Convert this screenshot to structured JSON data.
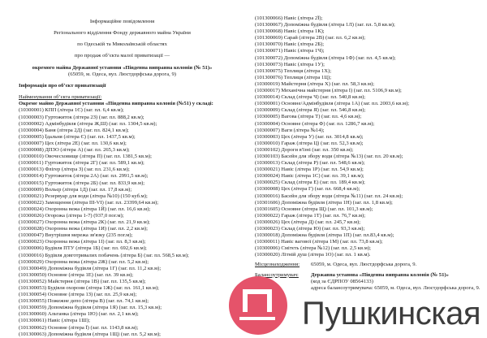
{
  "header": {
    "line1": "Інформаційне повідомлення",
    "line2": "Регіонального відділення Фонду державного майна України",
    "line3": "по Одеській та Миколаївській областях",
    "line4": "про продаж об’єкта малої приватизації —",
    "line5": "окремого майна Державної установи «Південна виправна колонія (№ 51)»",
    "line6": "(65059, м. Одеса, вул. Люстдорфська дорога, 9)"
  },
  "section_title": "Інформація про об’єкт приватизації",
  "name_label": "Найменування об’єкта приватизації:",
  "object_title": "Окреме майно Державної установи «Південна виправна колонія (№51) у складі:",
  "left_items": [
    "(10300001) КПП (літера 1Є) (заг. пл. 6,4 кв.м);",
    "(10300003) Гуртожиток (літера 2З) (заг. пл. 888,2 кв.м);",
    "(10300002) Адмінбудівля (літера Ж,Ш) (заг. пл. 1304,5 кв.м);",
    "(10300004) Баня (літера 2Д) (заг. пл. 824,1 кв.м);",
    "(10300005) Їдальня (літера Є) (заг. пл. 1437,5 кв.м);",
    "(10300007) Цех (літера 2Е) (заг. пл. 130,6 кв.м);",
    "(10300008) ДПЗО (літера А) (заг. пл. 265,3 кв.м);",
    "(10300010) Овочесховище (літера П) (заг. пл. 1381,5 кв.м);",
    "(10300011) Гуртожиток (літера 2Г) (заг. пл. 589,1 кв.м);",
    "(10300013) Флігер (літера З) (заг. пл. 231,6 кв.м);",
    "(10300014) Гуртожиток (літера 2А) (заг. пл. 2991,5 кв.м);",
    "(10300015) Гуртожиток (літера 2Б) (заг. пл. 833,9 кв.м);",
    "(10300009) Вольєр (літера 1Д) (заг. пл. 17,8 кв.м);",
    "(10300021) Резервуар для води (літера №10) (150 куб.м);",
    "(10300022) Замощення (літера ІІІ-VІ) (заг. пл. 23399,64 кв.м);",
    "(10300024) Охоронна вежа (літера 1Й) (заг. пл. 16,6 кв.м);",
    "(10300026) Огорожа (літера 1-7) (937,0 пог.м);",
    "(10300027) Охоронна вежа (літера 2К) (заг. пл. 21,9 кв.м);",
    "(10300028) Охоронна вежа (літера 1И) (заг. пл. 2,2 кв.м);",
    "(10300047) Внутрішня мережа зв'язку (235 пог.м);",
    "(10300023) Охоронна вежа (літера 1І) (заг. пл. 8,3 кв.м);",
    "(10300006) Будівля ПТУ (літера 1Б) (заг. пл. 692,6 кв.м);",
    "(10300016) Будівля довготривалих побачень (літера Б) (заг. пл. 568,5 кв.м);",
    "(10300029) Охоронна вежа (літера 2Ж) (заг. пл. 5,2 кв.м);",
    "(101300049) Допоміжна будівля (літера 1Г) (заг. пл. 11,2 кв.м);",
    "(101300050) Основне (літера 1Е) (заг. пл. 39 кв.м);",
    "(101300052) Майстерня (літера 1В) (заг. пл. 135,5 кв.м);",
    "(101300053) Будівля охорони (літера 1Ж) (заг. пл. 161,1 кв.м);",
    "(101300054) Основне (літера 1З) (заг. пл. 25,9 кв.м);",
    "(101300055) Пожежне депо (літера В) (заг. пл. 74,1 кв.м);",
    "(101300059) Допоміжна будівля (літера 1Я) (заг. пл. 15,3 кв.м);",
    "(101300060) Альтанка (літера 1Ю) (заг. пл. 2,1 кв.м);",
    "(101300061) Навіс (літера 1Ш);",
    "(101300062) Основне (літера Ї) (заг. пл. 1143,8 кв.м);",
    "(101300063) Допоміжна будівля (літера 1Щ) (заг. пл. 5,2 кв.м);"
  ],
  "right_items": [
    "(101300066) Навіс (літера 2Ї);",
    "(101300067) Допоміжна будівля (літера 1Л) (заг. пл. 5,8 кв.м);",
    "(101300068) Навіс (літера 1К);",
    "(101300069) Сарай (літера 2В) (заг. пл. 6,2 кв.м);",
    "(101300070) Навіс (літера 2Б);",
    "(101300071) Навіс (літера 1Ч);",
    "(101300072) Допоміжна будівля (літера 1Ф) (заг. пл. 4,5 кв.м);",
    "(101300073) Навіс (літера 1У);",
    "(101300075) Теплиця (літера 1Х);",
    "(101300076) Теплиця (літера 1Ц);",
    "(10300019) Майстерня (літера Х) (заг. пл. 58,3 кв.м);",
    "(10300017) Механічна майстерня (літера І) (заг. пл. 5106,9 кв.м);",
    "(10300014) Склад (літера Ч) (заг. пл. 540,8 кв.м);",
    "(10300001) Основне/Адмінбудівля (літера 1А) (заг. пл. 2003,6 кв.м);",
    "(10300009) Склад (літера Я) (заг. пл. 546,8 кв.м);",
    "(10300005) Вагова (літера Т) (заг. пл. 4,6 кв.м);",
    "(10300004) Основне (літера Ф) (заг. пл. 1286,7 кв.м);",
    "(10300007) Ваги (літера №14);",
    "(10300003) Цех (літера У) (заг. пл. 3014,8 кв.м);",
    "(10300010) Гараж (літера Ц) (заг. пл. 52,3 кв.м);",
    "(10300102) Дороги в'їзні (заг. пл. 350 кв.м);",
    "(10300103) Басейн для збору води (літера №13) (заг. пл. 20 кв.м);",
    "(10300013) Склад (літера Р) (заг. пл. 548,6 кв.м);",
    "(10300021) Навіс (літера 1Р) (заг. пл. 54,9 кв.м);",
    "(10300024) Навіс (літера 1С) (заг. пл. 39,1 кв.м);",
    "(10300025) Склад (літера Е) (заг. пл. 189,4 кв.м);",
    "(10300008) Цех (літера Г) (заг. пл. 668,4 кв.м);",
    "(10300016) Басейн для збору води (літера №11) (заг. пл. 24 кв.м);",
    "(10301606) Допоміжна будівля (літера 1Н) (заг. пл. 1,8 кв.м);",
    "(10301605) Основне (літера Щ) (заг. пл. 101,3 кв.м);",
    "(10300022) Гараж (літера 1Т) (заг. пл. 76,7 кв.м);",
    "(10300026) Цех (літера Д) (заг. пл. 245,7 кв.м);",
    "(10300023) Склад (літера Ю) (заг. пл. 93,3 кв.м);",
    "(10300018) Допоміжна будівля (літера 1П) (заг. пл.83,4 кв.м);",
    "(10300011) Навіс вагової (літера 1М) (заг. пл. 73,8 кв.м);",
    "(10300006) Смітєть (літера №12) (заг. пл. 2,5 кв.м);",
    "(10300020) Літній душ (літера 1О) (заг. пл. 1 кв.м)."
  ],
  "location": {
    "label": "Місцезнаходження:",
    "value": "65059, м. Одеса, вул. Люстдорфська дорога, 9."
  },
  "holder": {
    "label": "Балансоутримувач:",
    "name": "Державна установа «Південна виправна колонія (№ 51)»",
    "code": "(код за ЄДРПОУ 08564133)",
    "address": "адреса балансоутримувача: 65059, м. Одеса, вул. Люстдорфська дорога, 9."
  },
  "watermark": {
    "text": "Пушкинская",
    "letter": "П",
    "color": "#e5536a"
  }
}
